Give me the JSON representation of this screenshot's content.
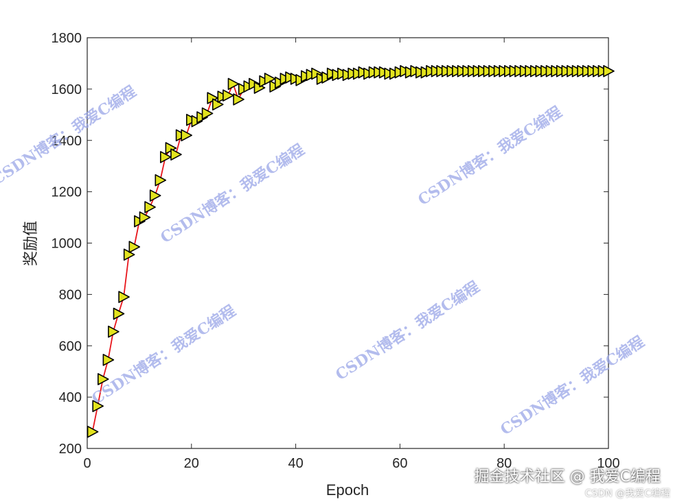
{
  "chart_data": {
    "type": "line",
    "xlabel": "Epoch",
    "ylabel": "奖励值",
    "xlim": [
      0,
      100
    ],
    "ylim": [
      200,
      1800
    ],
    "xticks": [
      0,
      20,
      40,
      60,
      80,
      100
    ],
    "yticks": [
      200,
      400,
      600,
      800,
      1000,
      1200,
      1400,
      1600,
      1800
    ],
    "grid": false,
    "line_color": "#e8141a",
    "marker": "triangle-right",
    "marker_fill": "#e3e31e",
    "marker_edge": "#000000",
    "series": [
      {
        "x": [
          1,
          2,
          3,
          4,
          5,
          6,
          7,
          8,
          9,
          10,
          11,
          12,
          13,
          14,
          15,
          16,
          17,
          18,
          19,
          20,
          21,
          22,
          23,
          24,
          25,
          26,
          27,
          28,
          29,
          30,
          31,
          32,
          33,
          34,
          35,
          36,
          37,
          38,
          39,
          40,
          41,
          42,
          43,
          44,
          45,
          46,
          47,
          48,
          49,
          50,
          51,
          52,
          53,
          54,
          55,
          56,
          57,
          58,
          59,
          60,
          61,
          62,
          63,
          64,
          65,
          66,
          67,
          68,
          69,
          70,
          71,
          72,
          73,
          74,
          75,
          76,
          77,
          78,
          79,
          80,
          81,
          82,
          83,
          84,
          85,
          86,
          87,
          88,
          89,
          90,
          91,
          92,
          93,
          94,
          95,
          96,
          97,
          98,
          99,
          100
        ],
        "y": [
          265,
          365,
          470,
          545,
          655,
          725,
          790,
          955,
          985,
          1085,
          1100,
          1140,
          1185,
          1245,
          1335,
          1370,
          1345,
          1420,
          1420,
          1480,
          1475,
          1490,
          1505,
          1565,
          1540,
          1570,
          1575,
          1620,
          1560,
          1600,
          1610,
          1620,
          1605,
          1630,
          1640,
          1610,
          1625,
          1640,
          1645,
          1640,
          1635,
          1650,
          1655,
          1660,
          1640,
          1645,
          1660,
          1655,
          1660,
          1655,
          1660,
          1660,
          1665,
          1660,
          1665,
          1665,
          1665,
          1660,
          1660,
          1665,
          1670,
          1665,
          1670,
          1665,
          1665,
          1670,
          1670,
          1670,
          1670,
          1670,
          1670,
          1670,
          1670,
          1670,
          1670,
          1670,
          1670,
          1670,
          1670,
          1670,
          1670,
          1670,
          1670,
          1670,
          1670,
          1670,
          1670,
          1670,
          1670,
          1670,
          1670,
          1670,
          1670,
          1670,
          1670,
          1670,
          1670,
          1670,
          1670,
          1670
        ]
      }
    ]
  },
  "watermarks": [
    "CSDN博客：我爱C编程",
    "CSDN博客：我爱C编程",
    "CSDN博客：我爱C编程",
    "CSDN博客：我爱C编程",
    "CSDN博客：我爱C编程",
    "CSDN博客：我爱C编程",
    "CSDN博客：我爱C编程"
  ],
  "corner_marks": {
    "line1": "掘金技术社区 @ 我爱C编程",
    "line2": "CSDN @我爱C编程"
  }
}
